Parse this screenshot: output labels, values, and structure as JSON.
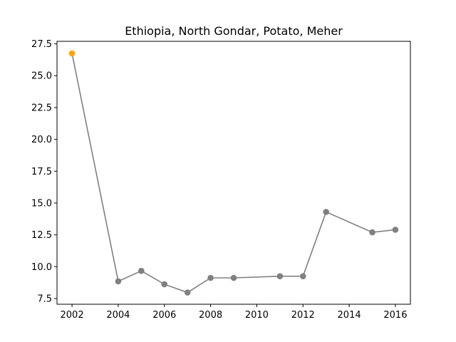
{
  "chart_data": {
    "type": "line",
    "title": "Ethiopia, North Gondar, Potato, Meher",
    "xlabel": "",
    "ylabel": "",
    "xlim": [
      2001.35,
      2016.65
    ],
    "ylim": [
      7.05,
      27.7
    ],
    "x_ticks": [
      2002,
      2004,
      2006,
      2008,
      2010,
      2012,
      2014,
      2016
    ],
    "y_ticks": [
      7.5,
      10.0,
      12.5,
      15.0,
      17.5,
      20.0,
      22.5,
      25.0,
      27.5
    ],
    "y_tick_labels": [
      "7.5",
      "10.0",
      "12.5",
      "15.0",
      "17.5",
      "20.0",
      "22.5",
      "25.0",
      "27.5"
    ],
    "grid": false,
    "series": [
      {
        "x": [
          2002,
          2004,
          2005,
          2006,
          2007,
          2008,
          2009,
          2011,
          2012,
          2013,
          2015,
          2016
        ],
        "values": [
          26.75,
          8.85,
          9.67,
          8.62,
          7.97,
          9.12,
          9.12,
          9.25,
          9.25,
          14.3,
          12.7,
          12.9
        ],
        "line_color": "#808080",
        "marker_color": "#808080",
        "highlight_index": 0,
        "highlight_color": "#ffa500"
      }
    ]
  }
}
